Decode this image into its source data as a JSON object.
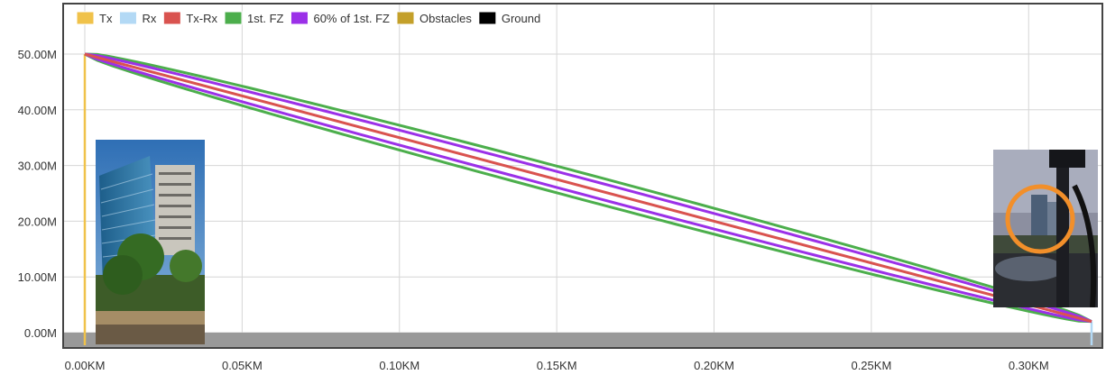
{
  "chart_data": {
    "type": "line",
    "title": "",
    "xlabel": "",
    "ylabel": "",
    "xlim": [
      0,
      0.32
    ],
    "ylim": [
      -1,
      55
    ],
    "x_unit": "KM",
    "y_unit": "M",
    "x_ticks": [
      "0.00KM",
      "0.05KM",
      "0.10KM",
      "0.15KM",
      "0.20KM",
      "0.25KM",
      "0.30KM"
    ],
    "x_tick_values": [
      0,
      0.05,
      0.1,
      0.15,
      0.2,
      0.25,
      0.3
    ],
    "y_ticks": [
      "0.00M",
      "10.00M",
      "20.00M",
      "30.00M",
      "40.00M",
      "50.00M"
    ],
    "y_tick_values": [
      0,
      10,
      20,
      30,
      40,
      50
    ],
    "grid": true,
    "legend_position": "top-left",
    "legend": [
      {
        "name": "Tx",
        "color": "#f0c24a"
      },
      {
        "name": "Rx",
        "color": "#b3d9f5"
      },
      {
        "name": "Tx-Rx",
        "color": "#d9534f"
      },
      {
        "name": "1st. FZ",
        "color": "#4cae4c"
      },
      {
        "name": "60% of 1st. FZ",
        "color": "#9b30e8"
      },
      {
        "name": "Obstacles",
        "color": "#c4a02a"
      },
      {
        "name": "Ground",
        "color": "#000000"
      }
    ],
    "link": {
      "x_start": 0.0,
      "y_start": 50.0,
      "x_end": 0.32,
      "y_end": 2.0
    },
    "fresnel": {
      "frequency_note": "",
      "first_zone_max_radius": 2.4,
      "sixty_pct_max_radius": 1.44
    },
    "series": [
      {
        "name": "Tx",
        "x": [
          0,
          0
        ],
        "y": [
          0,
          50
        ]
      },
      {
        "name": "Rx",
        "x": [
          0.32,
          0.32
        ],
        "y": [
          0,
          2
        ]
      },
      {
        "name": "Tx-Rx",
        "x": [
          0,
          0.32
        ],
        "y": [
          50,
          2
        ]
      },
      {
        "name": "1st. FZ",
        "kind": "ellipse",
        "radius_at_mid": 2.4
      },
      {
        "name": "60% of 1st. FZ",
        "kind": "ellipse",
        "radius_at_mid": 1.44
      },
      {
        "name": "Ground",
        "x": [
          0,
          0.32
        ],
        "y": [
          -1,
          -1
        ]
      }
    ]
  },
  "photos": [
    {
      "role": "tx",
      "subject": "building-photo"
    },
    {
      "role": "rx",
      "subject": "rx-view-photo"
    }
  ]
}
